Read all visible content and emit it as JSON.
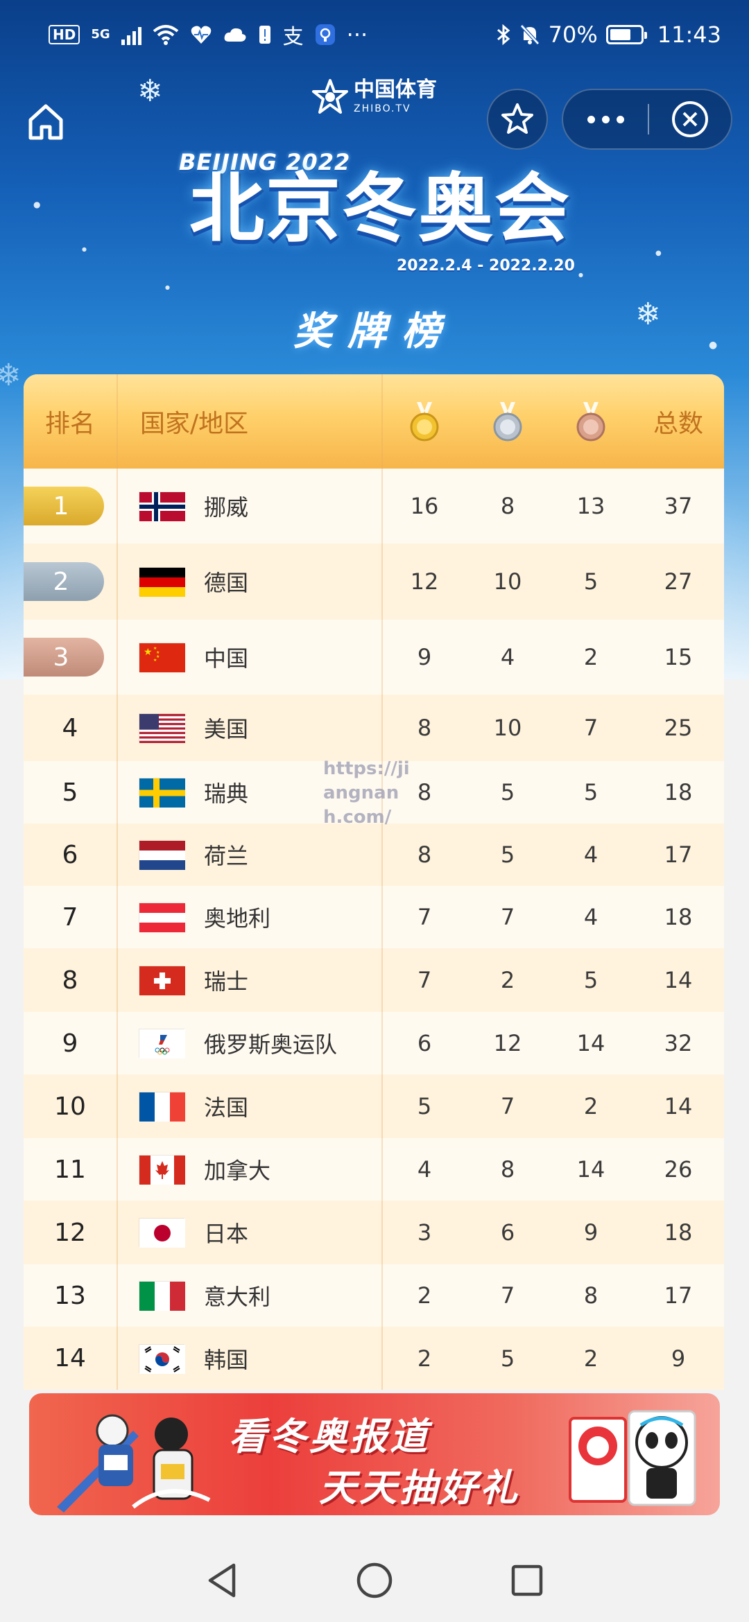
{
  "status_bar": {
    "left_hd": "HD",
    "left_net": "5G",
    "left_extra": "支",
    "left_more": "···",
    "battery": "70%",
    "battery_level": 0.7,
    "time": "11:43"
  },
  "nav": {
    "brand_name": "中国体育",
    "brand_sub": "ZHIBO.TV",
    "icons": [
      "home-icon",
      "star-icon",
      "more-icon",
      "close-icon"
    ]
  },
  "event": {
    "brand_line": "BEIJING 2022",
    "title": "北京冬奥会",
    "dates": "2022.2.4 - 2022.2.20",
    "section_title": "奖牌榜"
  },
  "table": {
    "headers": {
      "rank": "排名",
      "country": "国家/地区",
      "total": "总数"
    },
    "medal_icons": [
      "gold-medal-icon",
      "silver-medal-icon",
      "bronze-medal-icon"
    ],
    "rows": [
      {
        "rank": "1",
        "country": "挪威",
        "flag": "norway-flag-icon",
        "gold": "16",
        "silver": "8",
        "bronze": "13",
        "total": "37"
      },
      {
        "rank": "2",
        "country": "德国",
        "flag": "germany-flag-icon",
        "gold": "12",
        "silver": "10",
        "bronze": "5",
        "total": "27"
      },
      {
        "rank": "3",
        "country": "中国",
        "flag": "china-flag-icon",
        "gold": "9",
        "silver": "4",
        "bronze": "2",
        "total": "15"
      },
      {
        "rank": "4",
        "country": "美国",
        "flag": "usa-flag-icon",
        "gold": "8",
        "silver": "10",
        "bronze": "7",
        "total": "25"
      },
      {
        "rank": "5",
        "country": "瑞典",
        "flag": "sweden-flag-icon",
        "gold": "8",
        "silver": "5",
        "bronze": "5",
        "total": "18"
      },
      {
        "rank": "6",
        "country": "荷兰",
        "flag": "netherlands-flag-icon",
        "gold": "8",
        "silver": "5",
        "bronze": "4",
        "total": "17"
      },
      {
        "rank": "7",
        "country": "奥地利",
        "flag": "austria-flag-icon",
        "gold": "7",
        "silver": "7",
        "bronze": "4",
        "total": "18"
      },
      {
        "rank": "8",
        "country": "瑞士",
        "flag": "switzerland-flag-icon",
        "gold": "7",
        "silver": "2",
        "bronze": "5",
        "total": "14"
      },
      {
        "rank": "9",
        "country": "俄罗斯奥运队",
        "flag": "roc-flag-icon",
        "gold": "6",
        "silver": "12",
        "bronze": "14",
        "total": "32"
      },
      {
        "rank": "10",
        "country": "法国",
        "flag": "france-flag-icon",
        "gold": "5",
        "silver": "7",
        "bronze": "2",
        "total": "14"
      },
      {
        "rank": "11",
        "country": "加拿大",
        "flag": "canada-flag-icon",
        "gold": "4",
        "silver": "8",
        "bronze": "14",
        "total": "26"
      },
      {
        "rank": "12",
        "country": "日本",
        "flag": "japan-flag-icon",
        "gold": "3",
        "silver": "6",
        "bronze": "9",
        "total": "18"
      },
      {
        "rank": "13",
        "country": "意大利",
        "flag": "italy-flag-icon",
        "gold": "2",
        "silver": "7",
        "bronze": "8",
        "total": "17"
      },
      {
        "rank": "14",
        "country": "韩国",
        "flag": "korea-flag-icon",
        "gold": "2",
        "silver": "5",
        "bronze": "2",
        "total": "9"
      }
    ]
  },
  "watermark": "https://jiangnanh.com/",
  "banner": {
    "line1": "看冬奥报道",
    "line2": "天天抽好礼"
  },
  "system_nav": {
    "icons": [
      "back-icon",
      "home-circle-icon",
      "recents-icon"
    ]
  },
  "colors": {
    "header_gold": "#f7b54a",
    "header_text": "#c0721f",
    "pill_gold": "#d9a92c",
    "pill_silver": "#8d9fae",
    "pill_bronze": "#bf8b78",
    "banner_red": "#ec3f3c"
  }
}
